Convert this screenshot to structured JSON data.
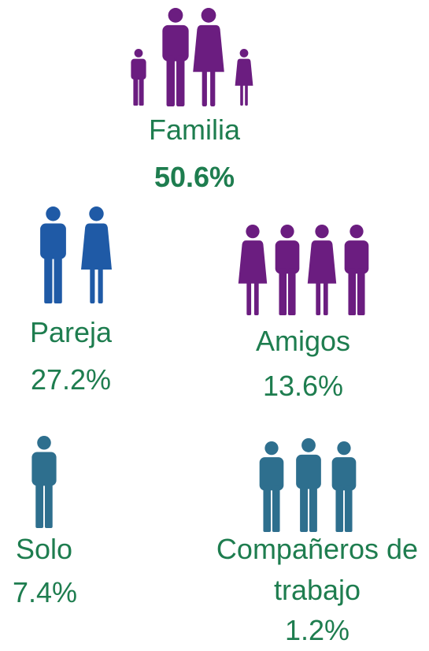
{
  "items": [
    {
      "label": "Familia",
      "value": "50.6%"
    },
    {
      "label": "Pareja",
      "value": "27.2%"
    },
    {
      "label": "Amigos",
      "value": "13.6%"
    },
    {
      "label": "Solo",
      "value": "7.4%"
    },
    {
      "label": "Compañeros de trabajo",
      "value": "1.2%"
    }
  ]
}
